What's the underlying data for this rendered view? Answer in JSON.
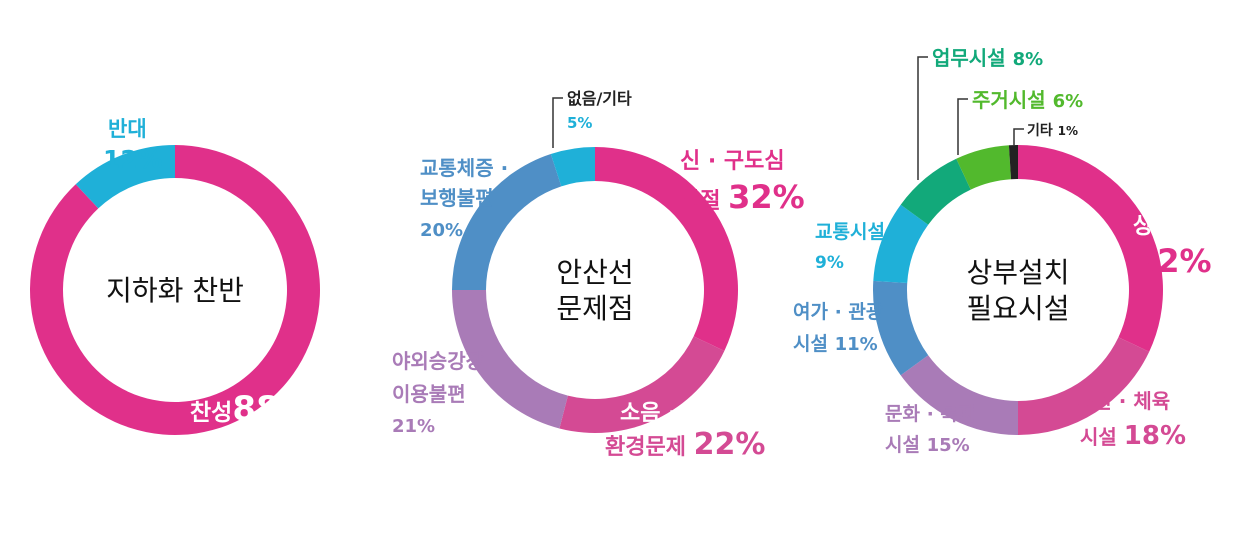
{
  "chart_data": [
    {
      "type": "pie",
      "donut": true,
      "center_label": [
        "지하화 찬반"
      ],
      "slices": [
        {
          "name": "찬성",
          "value": 88,
          "value_text": "88",
          "color": "#e0308a"
        },
        {
          "name": "반대",
          "value": 12,
          "value_text": "12%",
          "color": "#1fb0d8"
        }
      ],
      "percent_sign": "%"
    },
    {
      "type": "pie",
      "donut": true,
      "center_label": [
        "안산선",
        "문제점"
      ],
      "slices": [
        {
          "name": "신 · 구도심 단절",
          "label_lines": [
            "신 · 구도심",
            "단절"
          ],
          "value": 32,
          "value_text": "32%",
          "color": "#e0308a"
        },
        {
          "name": "소음 · 진동 등 환경문제",
          "label_lines": [
            "소음 · 진동 등",
            "환경문제"
          ],
          "value": 22,
          "value_text": "22%",
          "color": "#d44a94"
        },
        {
          "name": "야외승강장 이용불편",
          "label_lines": [
            "야외승강장",
            "이용불편"
          ],
          "value": 21,
          "value_text": "21%",
          "color": "#a97bb7"
        },
        {
          "name": "교통체증 · 보행불편",
          "label_lines": [
            "교통체증 ·",
            "보행불편"
          ],
          "value": 20,
          "value_text": "20%",
          "color": "#4f8fc6"
        },
        {
          "name": "없음/기타",
          "label_lines": [
            "없음/기타"
          ],
          "value": 5,
          "value_text": "5%",
          "color": "#1fb0d8"
        }
      ]
    },
    {
      "type": "pie",
      "donut": true,
      "center_label": [
        "상부설치",
        "필요시설"
      ],
      "slices": [
        {
          "name": "상업시설",
          "label_lines": [
            "상업시설"
          ],
          "value": 32,
          "value_text": "32%",
          "color": "#e0308a"
        },
        {
          "name": "공원 · 체육 시설",
          "label_lines": [
            "공원 · 체육",
            "시설"
          ],
          "value": 18,
          "value_text": "18%",
          "color": "#d44a94"
        },
        {
          "name": "문화 · 복지 시설",
          "label_lines": [
            "문화 · 복지",
            "시설"
          ],
          "value": 15,
          "value_text": "15%",
          "color": "#a97bb7"
        },
        {
          "name": "여가 · 관광 시설",
          "label_lines": [
            "여가 · 관광",
            "시설"
          ],
          "value": 11,
          "value_text": "11%",
          "color": "#4f8fc6"
        },
        {
          "name": "교통시설",
          "label_lines": [
            "교통시설"
          ],
          "value": 9,
          "value_text": "9%",
          "color": "#1fb0d8"
        },
        {
          "name": "업무시설",
          "label_lines": [
            "업무시설"
          ],
          "value": 8,
          "value_text": "8%",
          "color": "#12a97a"
        },
        {
          "name": "주거시설",
          "label_lines": [
            "주거시설"
          ],
          "value": 6,
          "value_text": "6%",
          "color": "#52b92d"
        },
        {
          "name": "기타",
          "label_lines": [
            "기타"
          ],
          "value": 1,
          "value_text": "1%",
          "color": "#222222"
        }
      ]
    }
  ]
}
